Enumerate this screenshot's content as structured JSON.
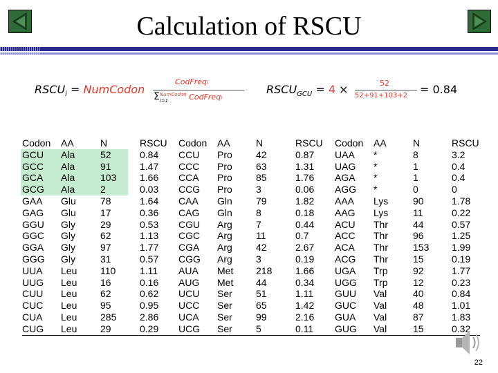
{
  "slide": {
    "title": "Calculation of RSCU",
    "page_number": "22",
    "icons": [
      "prev-arrow-icon",
      "next-arrow-icon",
      "speaker-icon"
    ],
    "colors": {
      "nav": "#2f6b36",
      "rule": "#2b2b8c",
      "highlight": "#c5ecd0",
      "formula_red": "#e03a2a"
    }
  },
  "formula_general": {
    "lhs": "RSCU",
    "lhs_sub": "i",
    "equals": "=",
    "factor": "NumCodon",
    "frac_num": "CodFreq",
    "frac_num_sub": "i",
    "frac_den_sum": "Σ",
    "frac_den_upper": "NumCodon",
    "frac_den_lower": "i=1",
    "frac_den": "CodFreq",
    "frac_den_sub": "i"
  },
  "formula_example": {
    "lhs": "RSCU",
    "lhs_sub": "GCU",
    "equals": "=",
    "factor": "4",
    "times": "×",
    "frac_num": "52",
    "frac_den": "52+91+103+2",
    "result": "= 0.84"
  },
  "table": {
    "columns": [
      {
        "header": "Codon",
        "values": [
          "GCU",
          "GCC",
          "GCA",
          "GCG",
          "GAA",
          "GAG",
          "GGU",
          "GGC",
          "GGA",
          "GGG",
          "UUA",
          "UUG",
          "CUU",
          "CUC",
          "CUA",
          "CUG"
        ]
      },
      {
        "header": "AA",
        "values": [
          "Ala",
          "Ala",
          "Ala",
          "Ala",
          "Glu",
          "Glu",
          "Gly",
          "Gly",
          "Gly",
          "Gly",
          "Leu",
          "Leu",
          "Leu",
          "Leu",
          "Leu",
          "Leu"
        ]
      },
      {
        "header": "N",
        "values": [
          "52",
          "91",
          "103",
          "2",
          "78",
          "17",
          "29",
          "62",
          "97",
          "31",
          "110",
          "16",
          "62",
          "95",
          "285",
          "29"
        ]
      },
      {
        "header": "RSCU",
        "values": [
          "0.84",
          "1.47",
          "1.66",
          "0.03",
          "1.64",
          "0.36",
          "0.53",
          "1.13",
          "1.77",
          "0.57",
          "1.11",
          "0.16",
          "0.62",
          "0.95",
          "2.86",
          "0.29"
        ]
      },
      {
        "header": "Codon",
        "values": [
          "CCU",
          "CCC",
          "CCA",
          "CCG",
          "CAA",
          "CAG",
          "CGU",
          "CGC",
          "CGA",
          "CGG",
          "AUA",
          "AUG",
          "UCU",
          "UCC",
          "UCA",
          "UCG"
        ]
      },
      {
        "header": "AA",
        "values": [
          "Pro",
          "Pro",
          "Pro",
          "Pro",
          "Gln",
          "Gln",
          "Arg",
          "Arg",
          "Arg",
          "Arg",
          "Met",
          "Met",
          "Ser",
          "Ser",
          "Ser",
          "Ser"
        ]
      },
      {
        "header": "N",
        "values": [
          "42",
          "63",
          "85",
          "3",
          "79",
          "8",
          "7",
          "11",
          "42",
          "3",
          "218",
          "44",
          "51",
          "65",
          "99",
          "5"
        ]
      },
      {
        "header": "RSCU",
        "values": [
          "0.87",
          "1.31",
          "1.76",
          "0.06",
          "1.82",
          "0.18",
          "0.44",
          "0.7",
          "2.67",
          "0.19",
          "1.66",
          "0.34",
          "1.11",
          "1.42",
          "2.16",
          "0.11"
        ]
      },
      {
        "header": "Codon",
        "values": [
          "UAA",
          "UAG",
          "AGA",
          "AGG",
          "AAA",
          "AAG",
          "ACU",
          "ACC",
          "ACA",
          "ACG",
          "UGA",
          "UGG",
          "GUU",
          "GUC",
          "GUA",
          "GUG"
        ]
      },
      {
        "header": "AA",
        "values": [
          "*",
          "*",
          "*",
          "*",
          "Lys",
          "Lys",
          "Thr",
          "Thr",
          "Thr",
          "Thr",
          "Trp",
          "Trp",
          "Val",
          "Val",
          "Val",
          "Val"
        ]
      },
      {
        "header": "N",
        "values": [
          "8",
          "1",
          "1",
          "0",
          "90",
          "11",
          "44",
          "96",
          "153",
          "15",
          "92",
          "12",
          "40",
          "48",
          "87",
          "15"
        ]
      },
      {
        "header": "RSCU",
        "values": [
          "3.2",
          "0.4",
          "0.4",
          "0",
          "1.78",
          "0.22",
          "0.57",
          "1.25",
          "1.99",
          "0.19",
          "1.77",
          "0.23",
          "0.84",
          "1.01",
          "1.83",
          "0.32"
        ]
      }
    ],
    "highlighted_rows": [
      0,
      1,
      2,
      3
    ],
    "highlighted_columns": [
      0,
      1,
      2
    ]
  }
}
